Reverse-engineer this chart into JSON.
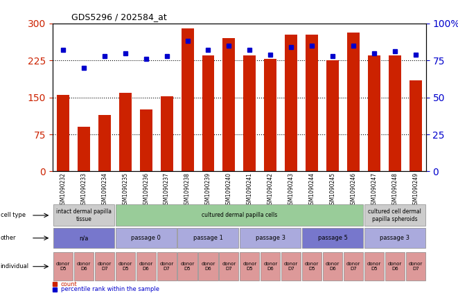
{
  "title": "GDS5296 / 202584_at",
  "samples": [
    "GSM1090232",
    "GSM1090233",
    "GSM1090234",
    "GSM1090235",
    "GSM1090236",
    "GSM1090237",
    "GSM1090238",
    "GSM1090239",
    "GSM1090240",
    "GSM1090241",
    "GSM1090242",
    "GSM1090243",
    "GSM1090244",
    "GSM1090245",
    "GSM1090246",
    "GSM1090247",
    "GSM1090248",
    "GSM1090249"
  ],
  "counts": [
    155,
    90,
    115,
    160,
    125,
    152,
    290,
    235,
    270,
    235,
    228,
    278,
    278,
    225,
    282,
    235,
    235,
    185
  ],
  "percentiles": [
    82,
    70,
    78,
    80,
    76,
    78,
    88,
    82,
    85,
    82,
    79,
    84,
    85,
    78,
    85,
    80,
    81,
    79
  ],
  "ylim_left": [
    0,
    300
  ],
  "ylim_right": [
    0,
    100
  ],
  "yticks_left": [
    0,
    75,
    150,
    225,
    300
  ],
  "yticks_right": [
    0,
    25,
    50,
    75,
    100
  ],
  "bar_color": "#cc2200",
  "dot_color": "#0000cc",
  "cell_type_groups": [
    {
      "label": "intact dermal papilla\ntissue",
      "start": 0,
      "end": 3,
      "color": "#cccccc"
    },
    {
      "label": "cultured dermal papilla cells",
      "start": 3,
      "end": 15,
      "color": "#99cc99"
    },
    {
      "label": "cultured cell dermal\npapilla spheroids",
      "start": 15,
      "end": 18,
      "color": "#cccccc"
    }
  ],
  "other_groups": [
    {
      "label": "n/a",
      "start": 0,
      "end": 3,
      "color": "#7777cc"
    },
    {
      "label": "passage 0",
      "start": 3,
      "end": 6,
      "color": "#aaaadd"
    },
    {
      "label": "passage 1",
      "start": 6,
      "end": 9,
      "color": "#aaaadd"
    },
    {
      "label": "passage 3",
      "start": 9,
      "end": 12,
      "color": "#aaaadd"
    },
    {
      "label": "passage 5",
      "start": 12,
      "end": 15,
      "color": "#7777cc"
    },
    {
      "label": "passage 3",
      "start": 15,
      "end": 18,
      "color": "#aaaadd"
    }
  ],
  "individual_groups": [
    {
      "label": "donor\nD5",
      "start": 0,
      "end": 1,
      "color": "#dd9999"
    },
    {
      "label": "donor\nD6",
      "start": 1,
      "end": 2,
      "color": "#dd9999"
    },
    {
      "label": "donor\nD7",
      "start": 2,
      "end": 3,
      "color": "#dd9999"
    },
    {
      "label": "donor\nD5",
      "start": 3,
      "end": 4,
      "color": "#dd9999"
    },
    {
      "label": "donor\nD6",
      "start": 4,
      "end": 5,
      "color": "#dd9999"
    },
    {
      "label": "donor\nD7",
      "start": 5,
      "end": 6,
      "color": "#dd9999"
    },
    {
      "label": "donor\nD5",
      "start": 6,
      "end": 7,
      "color": "#dd9999"
    },
    {
      "label": "donor\nD6",
      "start": 7,
      "end": 8,
      "color": "#dd9999"
    },
    {
      "label": "donor\nD7",
      "start": 8,
      "end": 9,
      "color": "#dd9999"
    },
    {
      "label": "donor\nD5",
      "start": 9,
      "end": 10,
      "color": "#dd9999"
    },
    {
      "label": "donor\nD6",
      "start": 10,
      "end": 11,
      "color": "#dd9999"
    },
    {
      "label": "donor\nD7",
      "start": 11,
      "end": 12,
      "color": "#dd9999"
    },
    {
      "label": "donor\nD5",
      "start": 12,
      "end": 13,
      "color": "#dd9999"
    },
    {
      "label": "donor\nD6",
      "start": 13,
      "end": 14,
      "color": "#dd9999"
    },
    {
      "label": "donor\nD7",
      "start": 14,
      "end": 15,
      "color": "#dd9999"
    },
    {
      "label": "donor\nD5",
      "start": 15,
      "end": 16,
      "color": "#dd9999"
    },
    {
      "label": "donor\nD6",
      "start": 16,
      "end": 17,
      "color": "#dd9999"
    },
    {
      "label": "donor\nD7",
      "start": 17,
      "end": 18,
      "color": "#dd9999"
    }
  ],
  "row_labels": [
    "cell type",
    "other",
    "individual"
  ],
  "legend_items": [
    {
      "label": "count",
      "color": "#cc2200"
    },
    {
      "label": "percentile rank within the sample",
      "color": "#0000cc"
    }
  ],
  "bg_color": "#ffffff"
}
